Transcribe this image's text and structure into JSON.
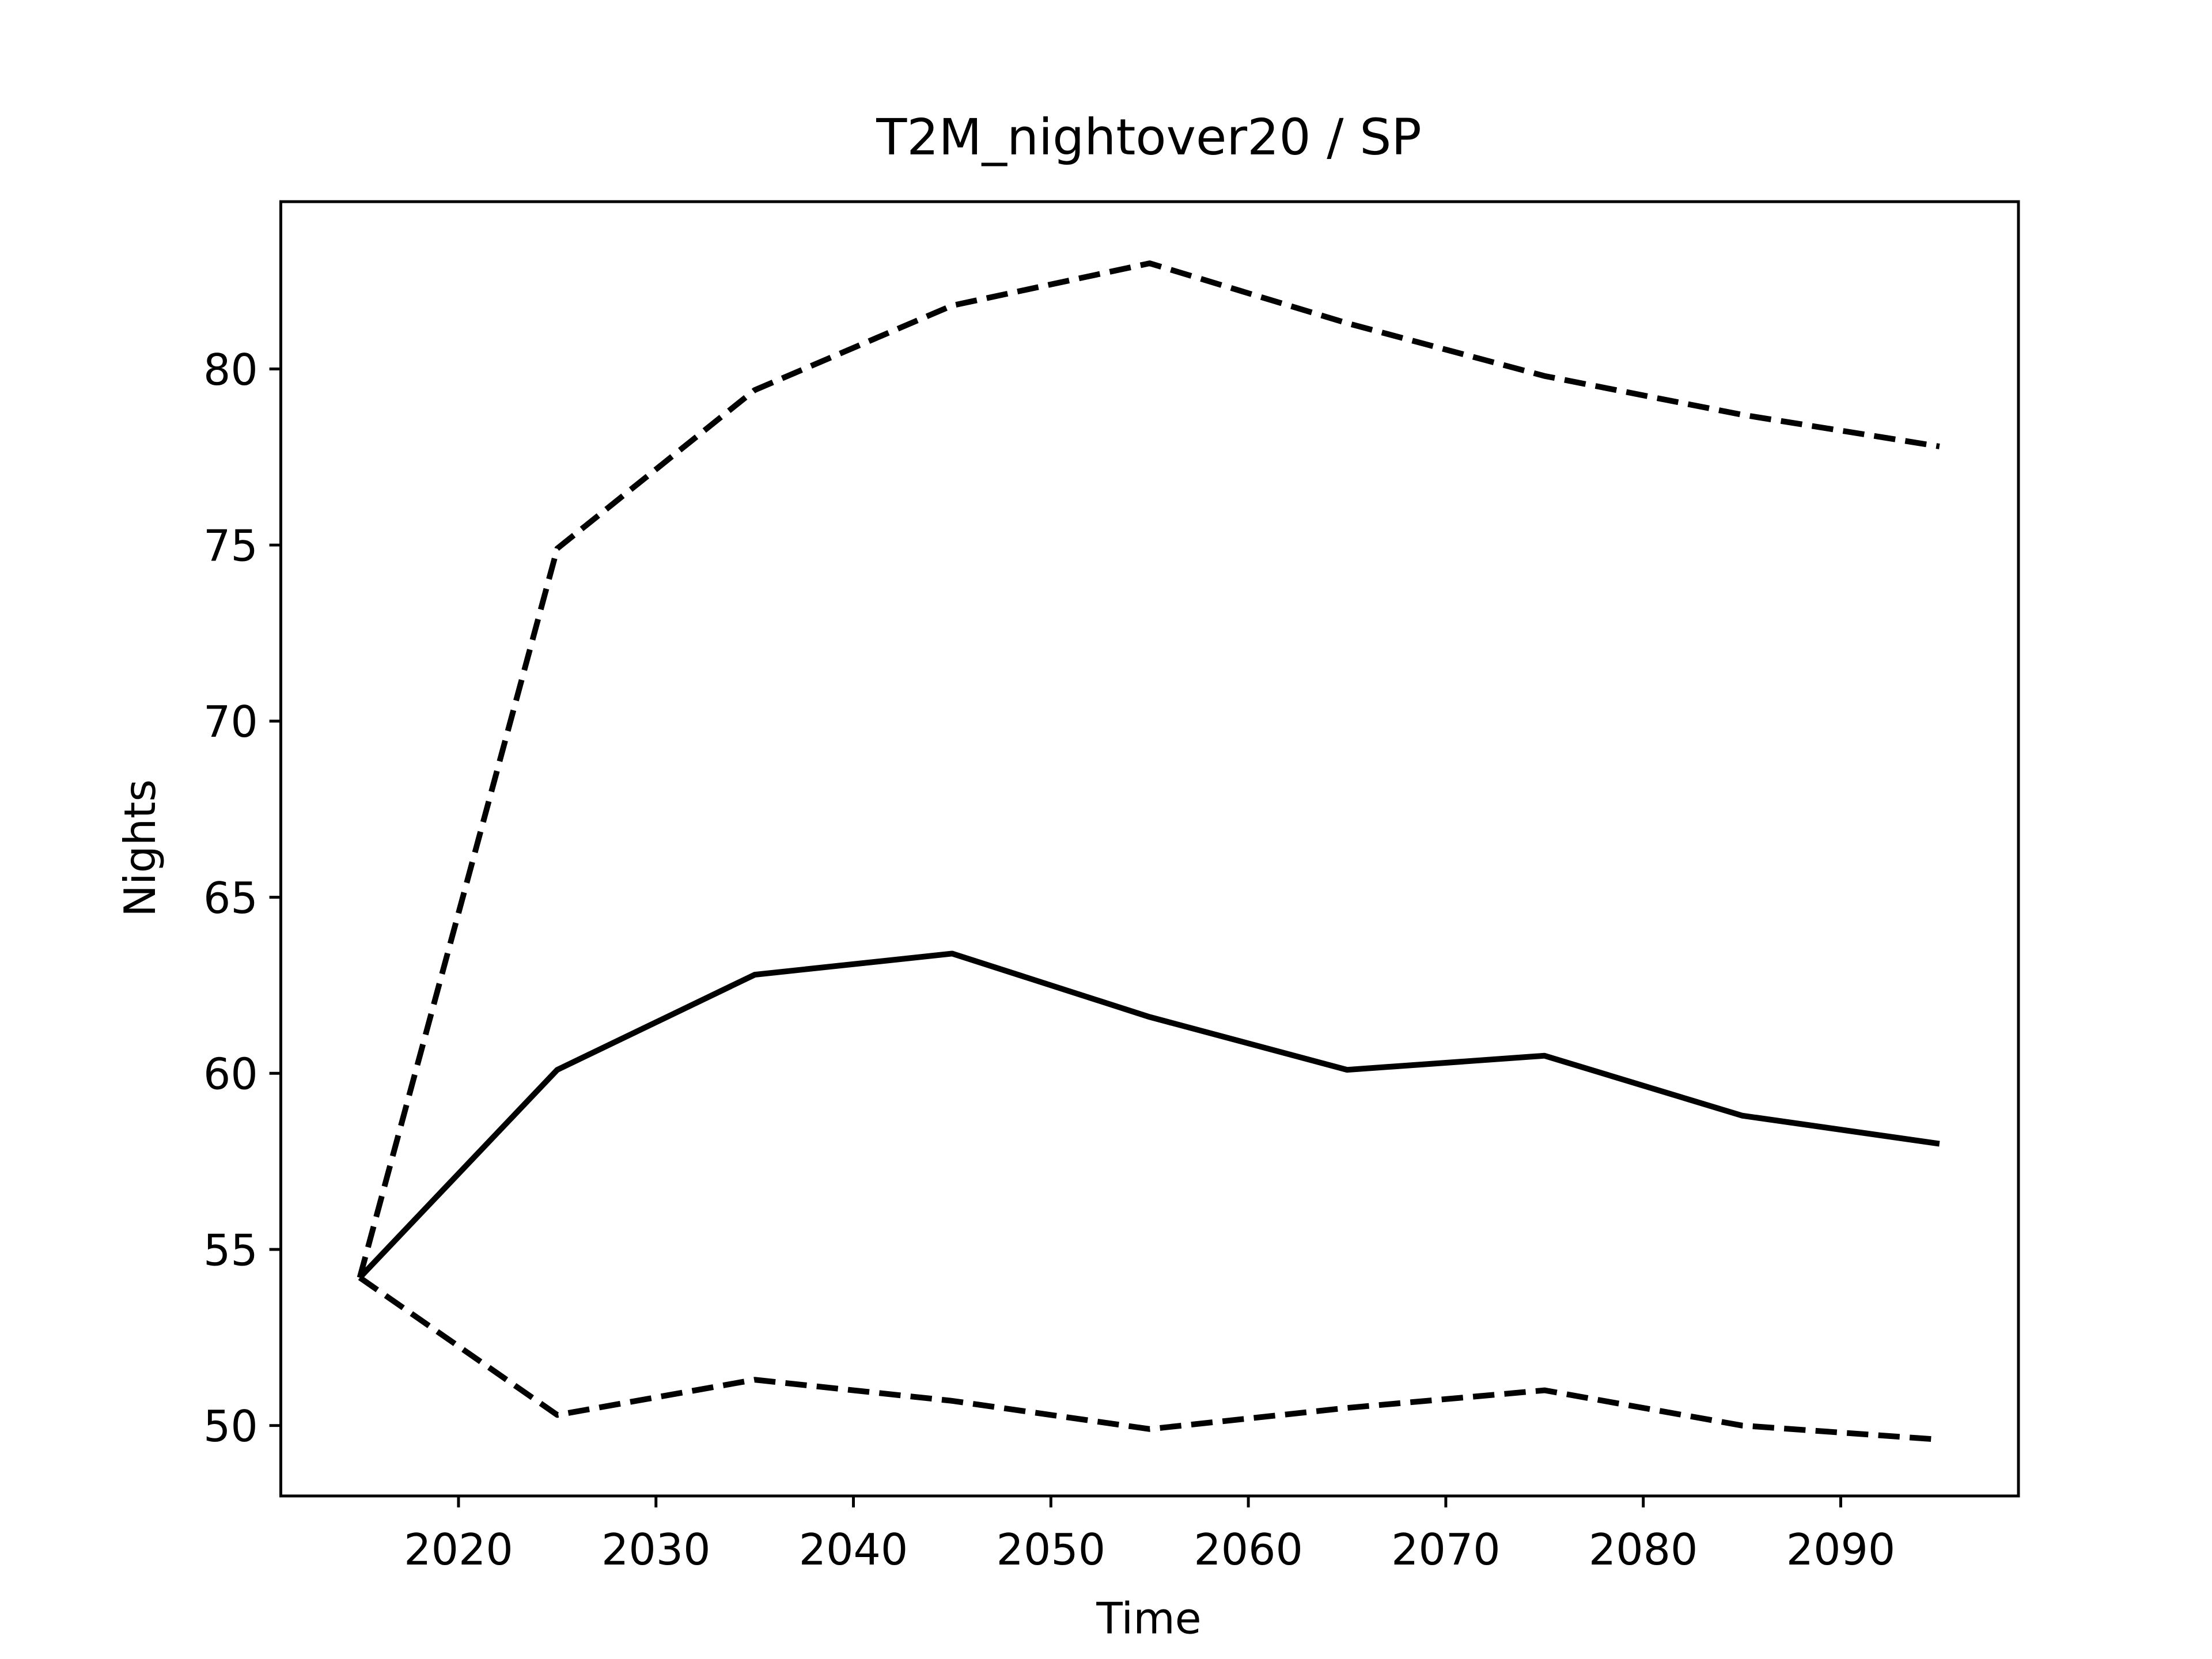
{
  "chart_data": {
    "type": "line",
    "title": "T2M_nightover20 / SP",
    "xlabel": "Time",
    "ylabel": "Nights",
    "x": [
      2015,
      2025,
      2035,
      2045,
      2055,
      2065,
      2075,
      2085,
      2095
    ],
    "series": [
      {
        "color": "#000000",
        "dash": false,
        "values": [
          54.2,
          60.1,
          62.8,
          63.4,
          61.6,
          60.1,
          60.5,
          58.8,
          58.0
        ]
      },
      {
        "color": "#000000",
        "dash": true,
        "values": [
          54.2,
          74.9,
          79.4,
          81.8,
          83.0,
          81.3,
          79.8,
          78.7,
          77.8
        ]
      },
      {
        "color": "#000000",
        "dash": true,
        "values": [
          54.2,
          50.3,
          51.3,
          50.7,
          49.9,
          50.5,
          51.0,
          50.0,
          49.6
        ]
      }
    ],
    "xlim": [
      2011,
      2099
    ],
    "xticks": [
      2020,
      2030,
      2040,
      2050,
      2060,
      2070,
      2080,
      2090
    ],
    "ylim": [
      48,
      84.75
    ],
    "yticks": [
      50,
      55,
      60,
      65,
      70,
      75,
      80
    ],
    "grid": false
  }
}
